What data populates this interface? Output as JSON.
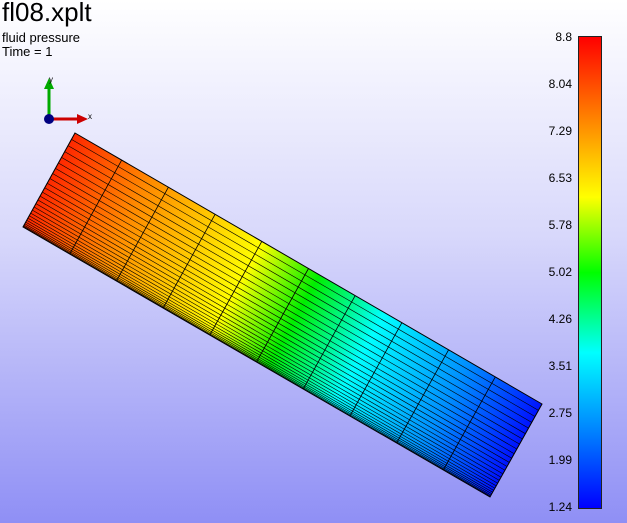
{
  "header": {
    "title": "fl08.xplt",
    "subtitle": "fluid pressure",
    "time": "Time = 1"
  },
  "triad": {
    "x_label": "x",
    "y_label": "y",
    "colors": {
      "x": "#cc0000",
      "y": "#00aa00",
      "z": "#000080"
    }
  },
  "colorbar": {
    "ticks": [
      "8.8",
      "8.04",
      "7.29",
      "6.53",
      "5.78",
      "5.02",
      "4.26",
      "3.51",
      "2.75",
      "1.99",
      "1.24"
    ],
    "min": 1.24,
    "max": 8.8
  },
  "background": {
    "top": "#ffffff",
    "bottom": "#8f8ff5"
  }
}
